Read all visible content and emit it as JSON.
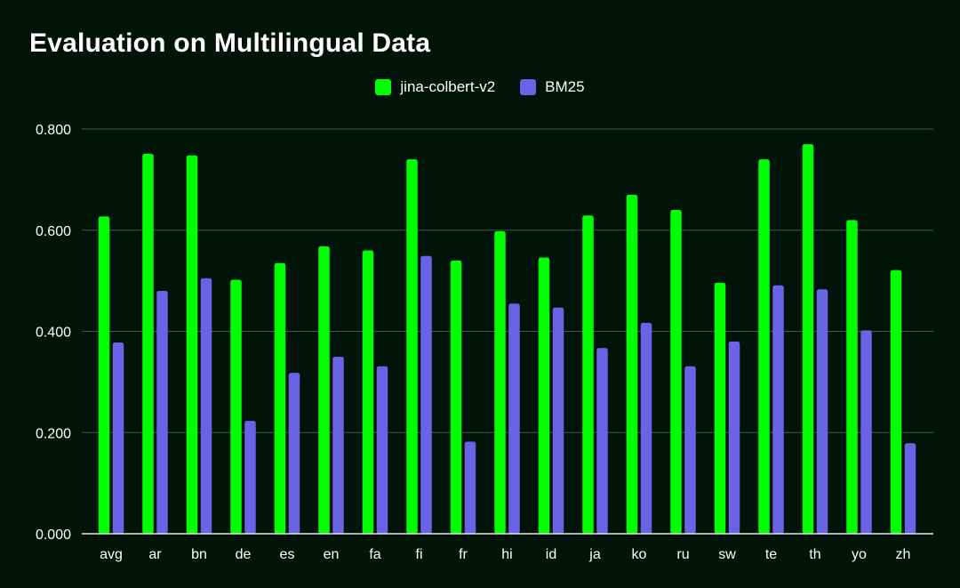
{
  "chart_data": {
    "type": "bar",
    "title": "Evaluation on Multilingual Data",
    "xlabel": "",
    "ylabel": "",
    "categories": [
      "avg",
      "ar",
      "bn",
      "de",
      "es",
      "en",
      "fa",
      "fi",
      "fr",
      "hi",
      "id",
      "ja",
      "ko",
      "ru",
      "sw",
      "te",
      "th",
      "yo",
      "zh"
    ],
    "series": [
      {
        "name": "jina-colbert-v2",
        "color": "#00ff00",
        "values": [
          0.627,
          0.751,
          0.748,
          0.502,
          0.535,
          0.568,
          0.56,
          0.74,
          0.54,
          0.598,
          0.546,
          0.629,
          0.67,
          0.64,
          0.496,
          0.74,
          0.77,
          0.62,
          0.521
        ]
      },
      {
        "name": "BM25",
        "color": "#6b63e6",
        "values": [
          0.378,
          0.48,
          0.505,
          0.223,
          0.318,
          0.35,
          0.331,
          0.549,
          0.182,
          0.455,
          0.447,
          0.367,
          0.417,
          0.331,
          0.38,
          0.491,
          0.483,
          0.402,
          0.179
        ]
      }
    ],
    "ylim": [
      0,
      0.8
    ],
    "yticks": [
      "0.000",
      "0.200",
      "0.400",
      "0.600",
      "0.800"
    ],
    "ytick_values": [
      0,
      0.2,
      0.4,
      0.6,
      0.8
    ],
    "grid": true,
    "legend_position": "top-center",
    "colors": {
      "background": "#00140a",
      "gridline": "#3c5a48",
      "baseline": "#e6e6e6",
      "text": "#ffffff"
    }
  }
}
